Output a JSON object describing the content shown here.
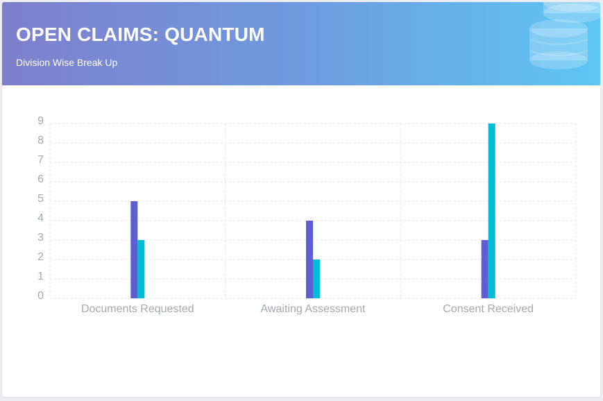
{
  "header": {
    "title": "OPEN CLAIMS: QUANTUM",
    "subtitle": "Division Wise Break Up",
    "icon": "coins-icon"
  },
  "colors": {
    "series_a": "#5b5fd1",
    "series_b": "#00bcd4",
    "grid": "#e3e5e8",
    "header_gradient": [
      "#7e7fcc",
      "#5ec6f4"
    ]
  },
  "chart_data": {
    "type": "bar",
    "categories": [
      "Documents Requested",
      "Awaiting Assessment",
      "Consent Received"
    ],
    "series": [
      {
        "values": [
          5,
          4,
          3
        ]
      },
      {
        "values": [
          3,
          2,
          9
        ]
      }
    ],
    "yticks": [
      "0",
      "1",
      "2",
      "3",
      "4",
      "5",
      "6",
      "7",
      "8",
      "9"
    ],
    "ylim": [
      0,
      9
    ],
    "grid": true,
    "legend": "none"
  }
}
